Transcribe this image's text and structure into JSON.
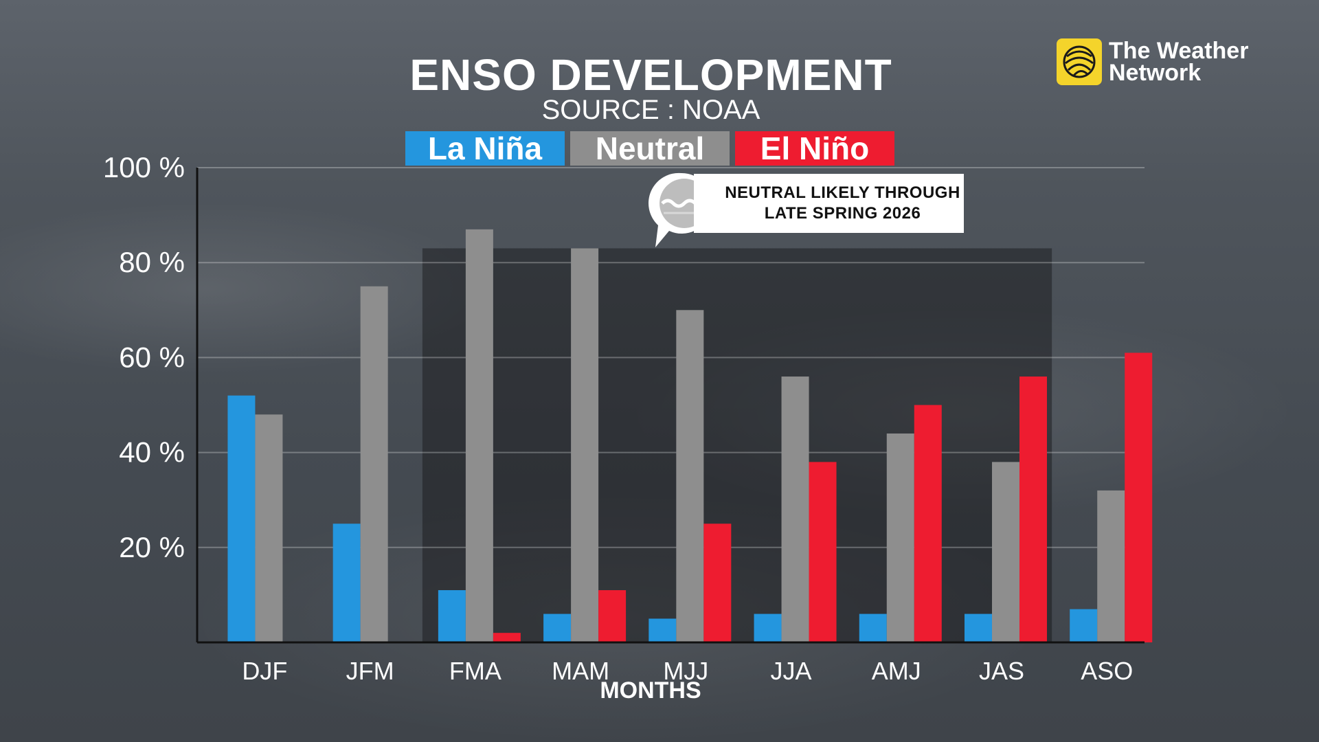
{
  "brand": {
    "name_line1": "The Weather",
    "name_line2": "Network",
    "accent": "#f4d42b",
    "icon": "swirl-logo-icon"
  },
  "callout": {
    "line1": "NEUTRAL LIKELY THROUGH",
    "line2": "LATE SPRING 2026",
    "icon": "wave-bubble-icon"
  },
  "chart_data": {
    "type": "bar",
    "title": "ENSO DEVELOPMENT",
    "subtitle": "SOURCE : NOAA",
    "xlabel": "MONTHS",
    "ylabel": "",
    "ylim": [
      0,
      100
    ],
    "yticks": [
      "100 %",
      "80 %",
      "60 %",
      "40 %",
      "20 %"
    ],
    "yticks_values": [
      100,
      80,
      60,
      40,
      20
    ],
    "grid": true,
    "legend_placement": "top-center",
    "categories": [
      "DJF",
      "JFM",
      "FMA",
      "MAM",
      "MJJ",
      "JJA",
      "AMJ",
      "JAS",
      "ASO"
    ],
    "series": [
      {
        "name": "La Niña",
        "color": "#2496de",
        "values": [
          52,
          25,
          11,
          6,
          5,
          6,
          6,
          6,
          7
        ]
      },
      {
        "name": "Neutral",
        "color": "#8e8e8e",
        "values": [
          48,
          75,
          87,
          83,
          70,
          56,
          44,
          38,
          32
        ]
      },
      {
        "name": "El Niño",
        "color": "#ee1c30",
        "values": [
          null,
          null,
          2,
          11,
          25,
          38,
          50,
          56,
          61
        ]
      }
    ],
    "highlight_categories": [
      "FMA",
      "MAM",
      "MJJ",
      "JJA",
      "AMJ",
      "JAS"
    ]
  }
}
